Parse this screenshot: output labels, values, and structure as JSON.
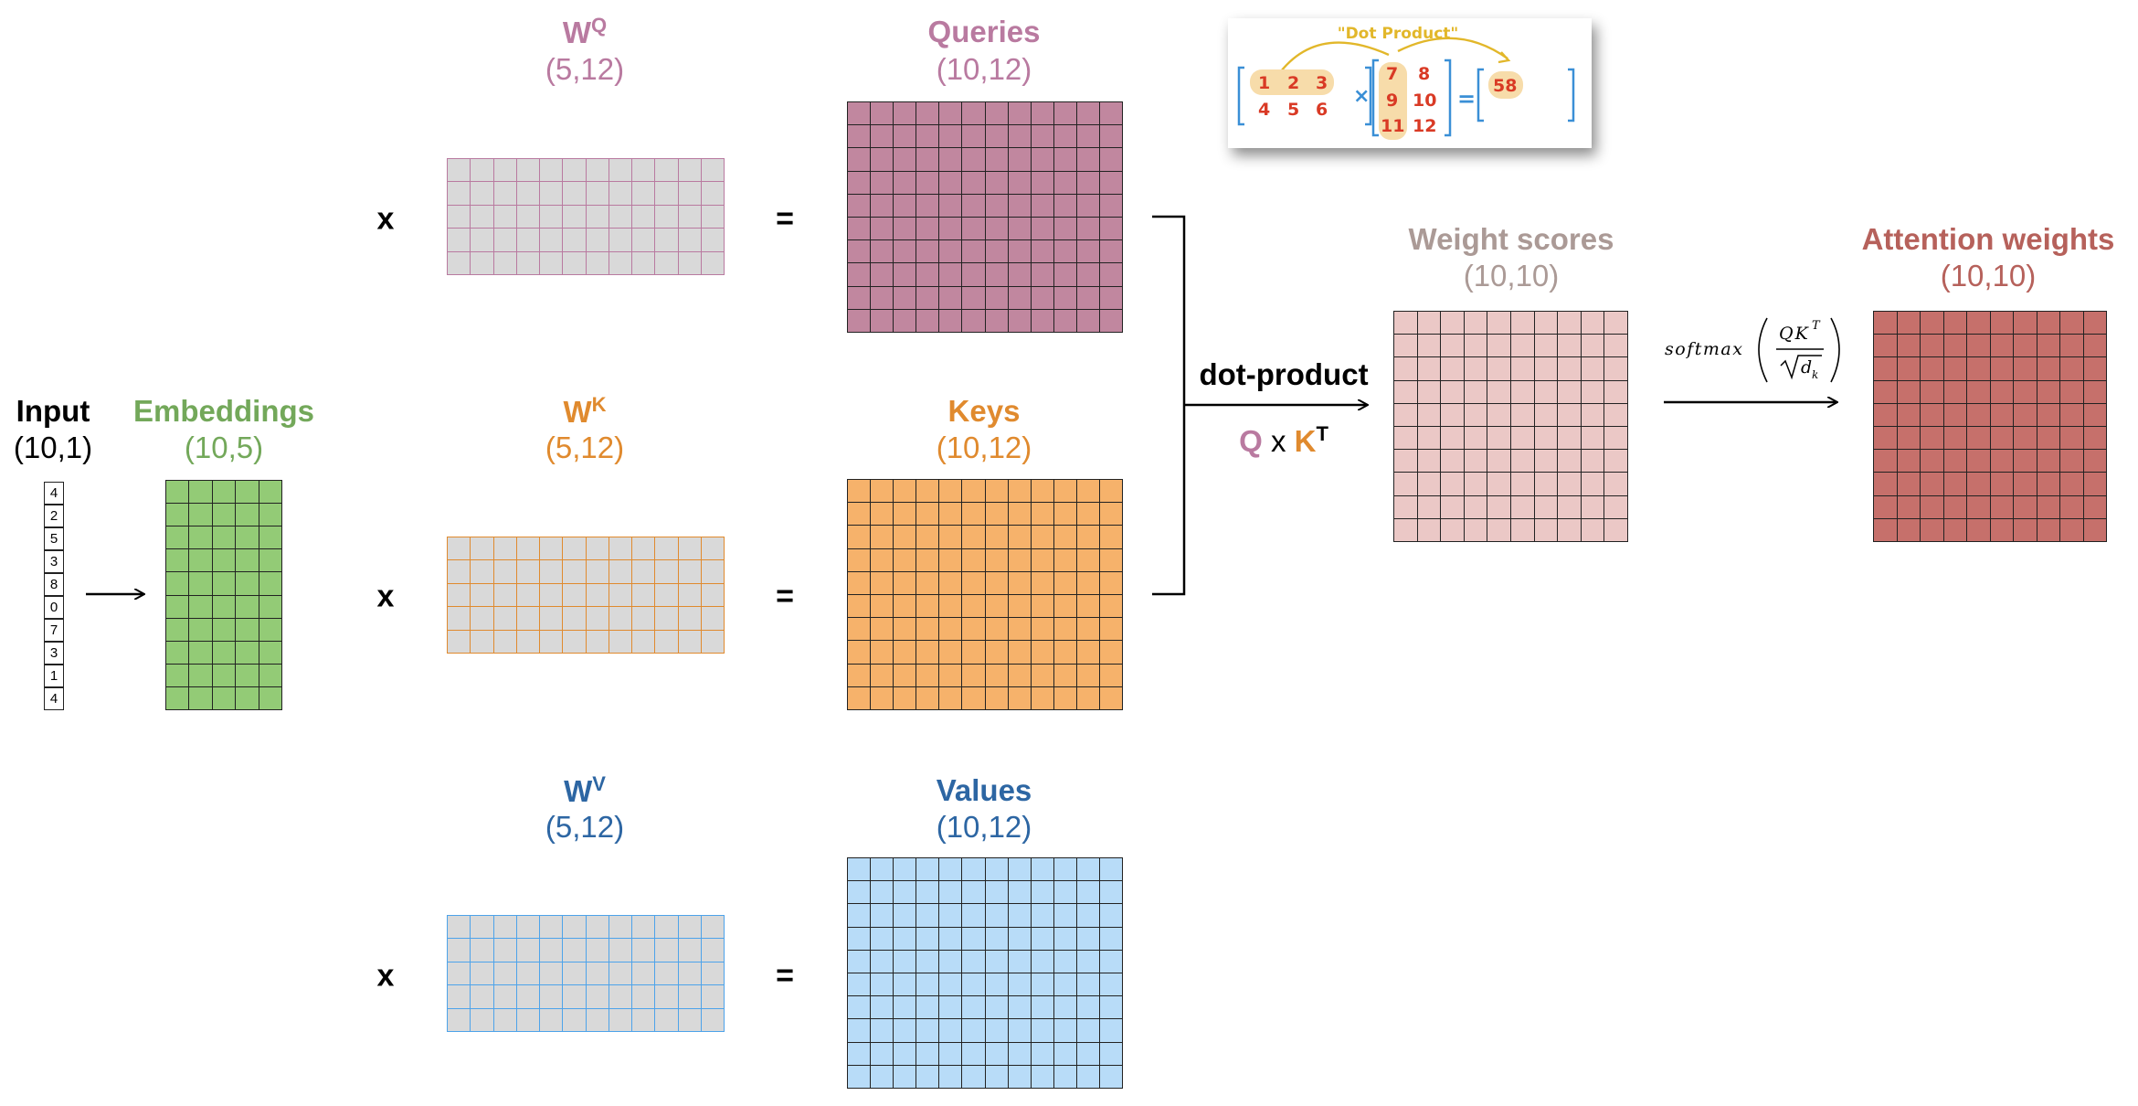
{
  "input": {
    "title": "Input",
    "dims": "(10,1)",
    "values": [
      "4",
      "2",
      "5",
      "3",
      "8",
      "0",
      "7",
      "3",
      "1",
      "4"
    ]
  },
  "embeddings": {
    "title": "Embeddings",
    "dims": "(10,5)",
    "color": "#93cb76"
  },
  "wq": {
    "letter": "W",
    "sup": "Q",
    "dims": "(5,12)",
    "color": "#b97aa0"
  },
  "wk": {
    "letter": "W",
    "sup": "K",
    "dims": "(5,12)",
    "color": "#e08a2e"
  },
  "wv": {
    "letter": "W",
    "sup": "V",
    "dims": "(5,12)",
    "color": "#2d66a3"
  },
  "queries": {
    "title": "Queries",
    "dims": "(10,12)",
    "color": "#c1879f"
  },
  "keys": {
    "title": "Keys",
    "dims": "(10,12)",
    "color": "#f6b26b"
  },
  "values_m": {
    "title": "Values",
    "dims": "(10,12)",
    "color": "#b8dcf8"
  },
  "weight_scores": {
    "title": "Weight scores",
    "dims": "(10,10)",
    "color": "#ebc8c6"
  },
  "attention": {
    "title": "Attention weights",
    "dims": "(10,10)",
    "color": "#c6706b"
  },
  "ops": {
    "times": "x",
    "equals": "="
  },
  "dot_product": {
    "label": "dot-product",
    "q": "Q",
    "x": "x",
    "k": "K",
    "t": "T"
  },
  "softmax": {
    "fn": "softmax",
    "q": "Q",
    "k": "K",
    "t": "T",
    "d": "d",
    "sub": "k"
  },
  "inset": {
    "caption": "\"Dot Product\"",
    "a": [
      [
        "1",
        "2",
        "3"
      ],
      [
        "4",
        "5",
        "6"
      ]
    ],
    "b": [
      [
        "7",
        "8"
      ],
      [
        "9",
        "10"
      ],
      [
        "11",
        "12"
      ]
    ],
    "times": "×",
    "equals": "=",
    "result": "58"
  }
}
